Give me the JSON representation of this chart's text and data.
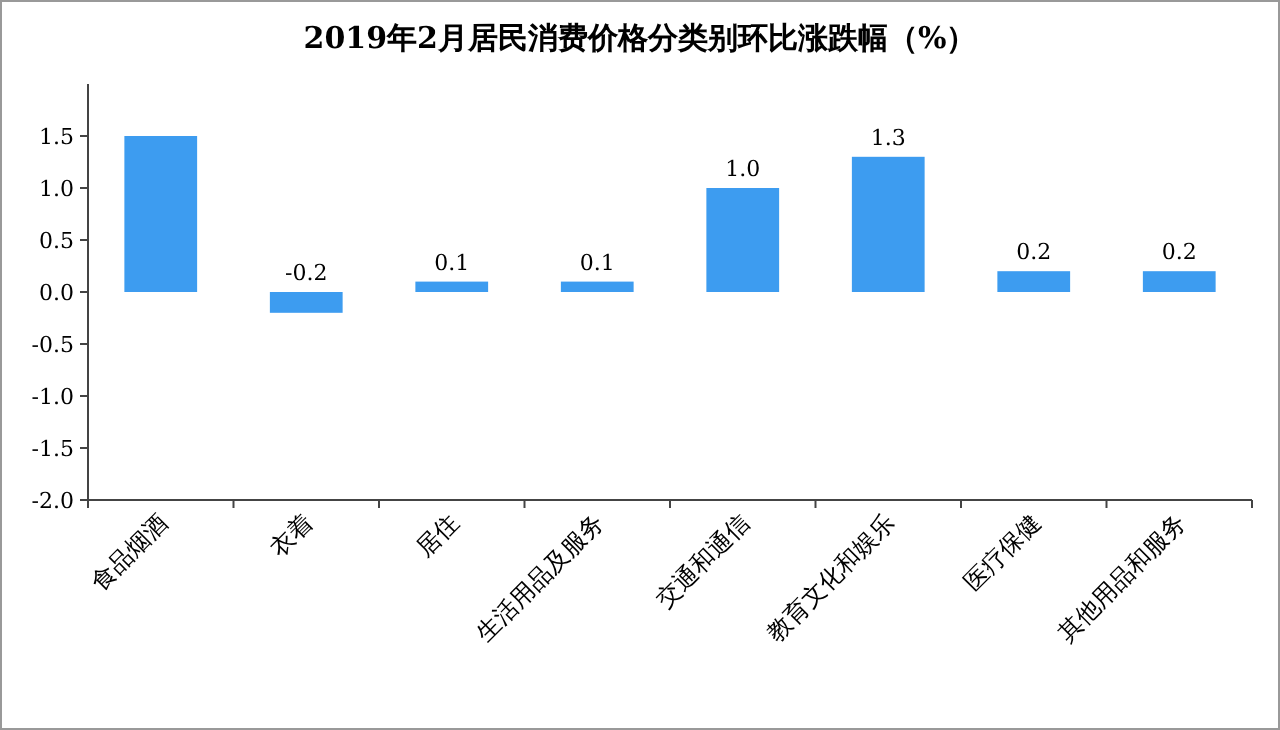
{
  "chart_data": {
    "type": "bar",
    "title": "2019年2月居民消费价格分类别环比涨跌幅（%）",
    "categories": [
      "食品烟酒",
      "衣着",
      "居住",
      "生活用品及服务",
      "交通和通信",
      "教育文化和娱乐",
      "医疗保健",
      "其他用品和服务"
    ],
    "values": [
      1.5,
      -0.2,
      0.1,
      0.1,
      1.0,
      1.3,
      0.2,
      0.2
    ],
    "value_labels": [
      null,
      "-0.2",
      "0.1",
      "0.1",
      "1.0",
      "1.3",
      "0.2",
      "0.2"
    ],
    "color": "#3d9cf0",
    "ylim": [
      -2.0,
      2.0
    ],
    "yticks": [
      {
        "value": -2,
        "label": "-2.0"
      },
      {
        "value": -1.5,
        "label": "-1.5"
      },
      {
        "value": -1,
        "label": "-1.0"
      },
      {
        "value": -0.5,
        "label": "-0.5"
      },
      {
        "value": 0,
        "label": "0.0"
      },
      {
        "value": 0.5,
        "label": "0.5"
      },
      {
        "value": 1,
        "label": "1.0"
      },
      {
        "value": 1.5,
        "label": "1.5"
      }
    ],
    "grid": false
  }
}
